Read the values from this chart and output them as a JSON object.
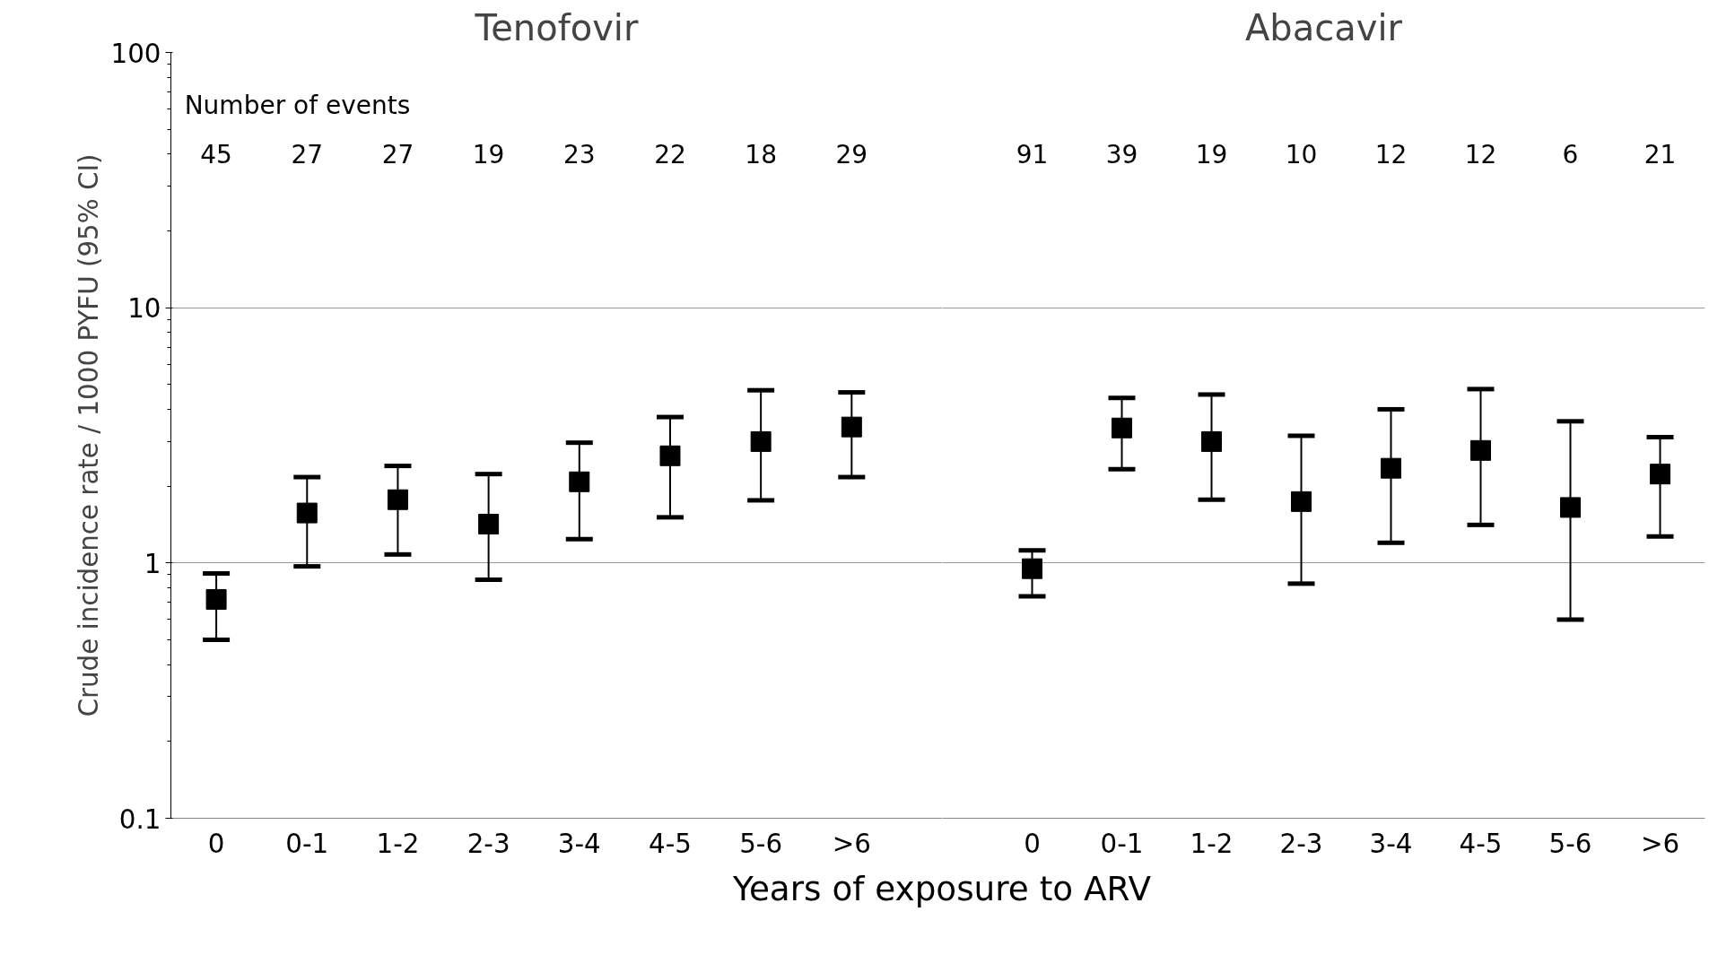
{
  "chart_data": [
    {
      "type": "scatter",
      "title": "Tenofovir",
      "xlabel": "Years of exposure to ARV",
      "ylabel": "Crude incidence rate / 1000 PYFU (95% CI)",
      "categories": [
        "0",
        "0-1",
        "1-2",
        "2-3",
        "3-4",
        "4-5",
        "5-6",
        ">6"
      ],
      "series": [
        {
          "color": "#000000",
          "values": [
            0.72,
            1.57,
            1.77,
            1.42,
            2.08,
            2.63,
            2.99,
            3.41
          ],
          "errors": [
            [
              0.5,
              0.91
            ],
            [
              0.97,
              2.17
            ],
            [
              1.08,
              2.4
            ],
            [
              0.86,
              2.23
            ],
            [
              1.24,
              2.96
            ],
            [
              1.51,
              3.73
            ],
            [
              1.76,
              4.75
            ],
            [
              2.17,
              4.66
            ]
          ]
        }
      ],
      "marker": "square",
      "log": "y",
      "ylim": [
        0.1,
        100
      ],
      "yticks": [
        0.1,
        1,
        10,
        100
      ],
      "grid": "y",
      "annotations": [
        "Number of events",
        "45",
        "27",
        "27",
        "19",
        "23",
        "22",
        "18",
        "29"
      ]
    },
    {
      "type": "scatter",
      "title": "Abacavir",
      "categories": [
        "0",
        "0-1",
        "1-2",
        "2-3",
        "3-4",
        "4-5",
        "5-6",
        ">6"
      ],
      "series": [
        {
          "color": "#000000",
          "values": [
            0.95,
            3.38,
            2.99,
            1.74,
            2.35,
            2.76,
            1.65,
            2.23
          ],
          "errors": [
            [
              0.74,
              1.12
            ],
            [
              2.33,
              4.43
            ],
            [
              1.77,
              4.57
            ],
            [
              0.83,
              3.15
            ],
            [
              1.2,
              4.0
            ],
            [
              1.41,
              4.8
            ],
            [
              0.6,
              3.59
            ],
            [
              1.27,
              3.11
            ]
          ]
        }
      ],
      "marker": "square",
      "log": "y",
      "ylim": [
        0.1,
        100
      ],
      "yticks": [
        0.1,
        1,
        10,
        100
      ],
      "grid": "y",
      "tick_labels": "x",
      "annotations": [
        "91",
        "39",
        "19",
        "10",
        "12",
        "12",
        "6",
        "21"
      ]
    }
  ]
}
